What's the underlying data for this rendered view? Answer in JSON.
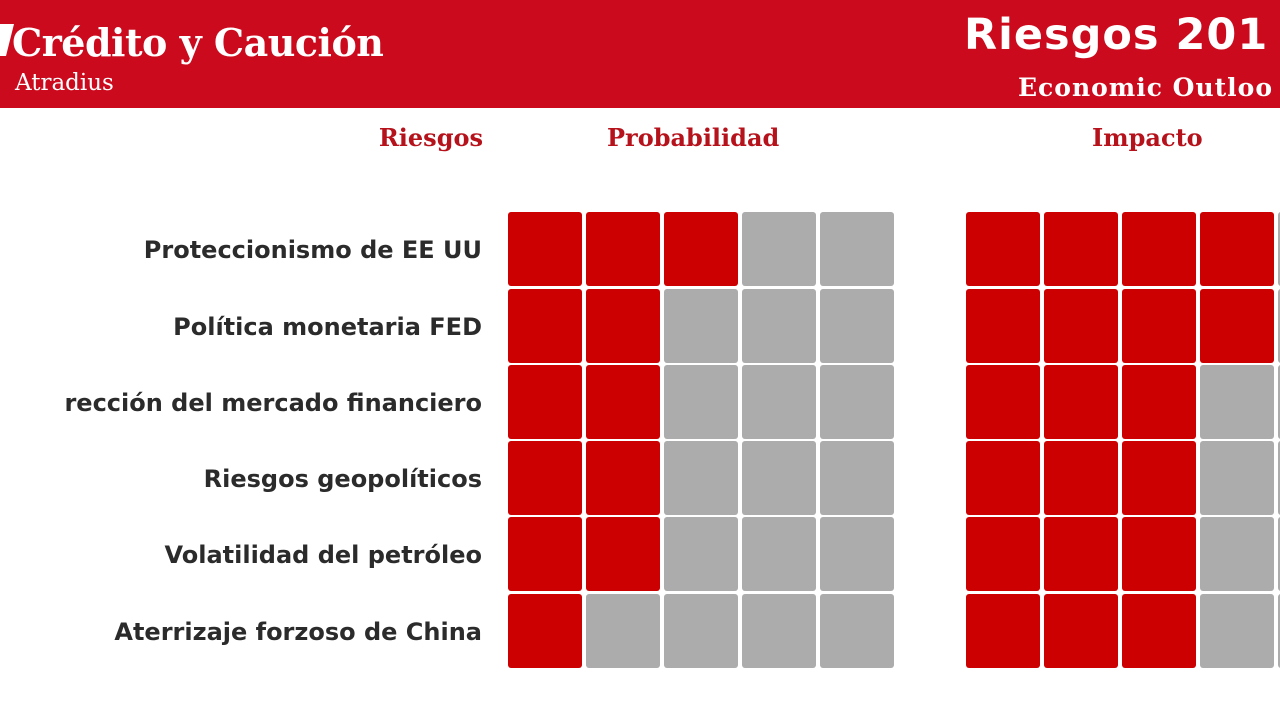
{
  "header": {
    "brand_name": "Crédito y Caución",
    "brand_sub": "Atradius",
    "report_title": "Riesgos 201",
    "report_sub": "Economic Outloo"
  },
  "colors": {
    "header_bg": "#cc0a1d",
    "filled": "#cc0000",
    "empty": "#acacac",
    "column_heading": "#b5121b",
    "label_text": "#2b2b2b"
  },
  "chart_data": {
    "type": "table",
    "title": "",
    "column_headers": {
      "risks": "Riesgos",
      "probability": "Probabilidad",
      "impact": "Impacto"
    },
    "scale_max": 5,
    "rows": [
      {
        "label": "Proteccionismo de EE UU",
        "probability": 3,
        "impact": 4
      },
      {
        "label": "Política monetaria FED",
        "probability": 2,
        "impact": 4
      },
      {
        "label": "rección del  mercado financiero",
        "probability": 2,
        "impact": 3
      },
      {
        "label": "Riesgos geopolíticos",
        "probability": 2,
        "impact": 3
      },
      {
        "label": "Volatilidad del petróleo",
        "probability": 2,
        "impact": 3
      },
      {
        "label": "Aterrizaje forzoso de China",
        "probability": 1,
        "impact": 3
      }
    ]
  }
}
